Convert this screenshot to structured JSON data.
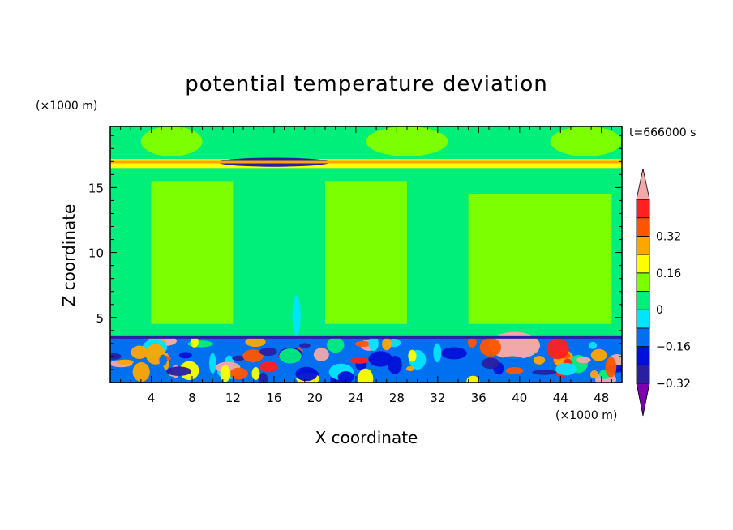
{
  "chart_data": {
    "type": "heatmap",
    "title": "potential temperature deviation",
    "xlabel": "X coordinate",
    "ylabel": "Z coordinate",
    "x_unit": "(×1000 m)",
    "y_unit": "(×1000 m)",
    "time_label": "t=666000 s",
    "xlim": [
      0,
      50
    ],
    "ylim": [
      0,
      19.7
    ],
    "x_ticks": [
      4,
      8,
      12,
      16,
      20,
      24,
      28,
      32,
      36,
      40,
      44,
      48
    ],
    "y_ticks": [
      5,
      10,
      15
    ],
    "colorbar": {
      "labels": [
        "0.32",
        "0.16",
        "0",
        "−0.16",
        "−0.32"
      ],
      "label_values": [
        0.32,
        0.16,
        0,
        -0.16,
        -0.32
      ],
      "levels": [
        -0.4,
        -0.32,
        -0.24,
        -0.16,
        -0.08,
        0,
        0.08,
        0.16,
        0.24,
        0.32,
        0.4
      ],
      "colors": [
        "#7a00b0",
        "#2a1fa0",
        "#0010d8",
        "#0070f0",
        "#00e5ff",
        "#00ee7a",
        "#7cff00",
        "#ffff00",
        "#ffa500",
        "#ff5500",
        "#ff2020",
        "#f0a8a8"
      ]
    },
    "regions": [
      {
        "x": [
          0,
          50
        ],
        "z": [
          3.5,
          19.7
        ],
        "value": -0.04
      },
      {
        "x": [
          3,
          9
        ],
        "z": [
          17.4,
          19.7
        ],
        "value": 0.04
      },
      {
        "x": [
          25,
          33
        ],
        "z": [
          17.4,
          19.7
        ],
        "value": 0.04
      },
      {
        "x": [
          43,
          50
        ],
        "z": [
          17.4,
          19.7
        ],
        "value": 0.04
      },
      {
        "x": [
          4,
          12
        ],
        "z": [
          4.5,
          15.5
        ],
        "value": 0.04
      },
      {
        "x": [
          21,
          29
        ],
        "z": [
          4.5,
          15.5
        ],
        "value": 0.04
      },
      {
        "x": [
          35,
          49
        ],
        "z": [
          4.5,
          14.5
        ],
        "value": 0.04
      },
      {
        "x": [
          0,
          50
        ],
        "z": [
          16.5,
          17.2
        ],
        "value": 0.12
      },
      {
        "x": [
          10.5,
          21.5
        ],
        "z": [
          16.6,
          17.3
        ],
        "value": -0.36
      },
      {
        "x": [
          17.8,
          18.6
        ],
        "z": [
          3.6,
          6.7
        ],
        "value": -0.12
      },
      {
        "x": [
          0,
          50
        ],
        "z": [
          0,
          3.5
        ],
        "value": -0.2
      },
      {
        "x": [
          37,
          42
        ],
        "z": [
          1.8,
          3.9
        ],
        "value": 0.44
      },
      {
        "x": [
          4,
          6.5
        ],
        "z": [
          2.8,
          3.6
        ],
        "value": 0.44
      }
    ]
  }
}
